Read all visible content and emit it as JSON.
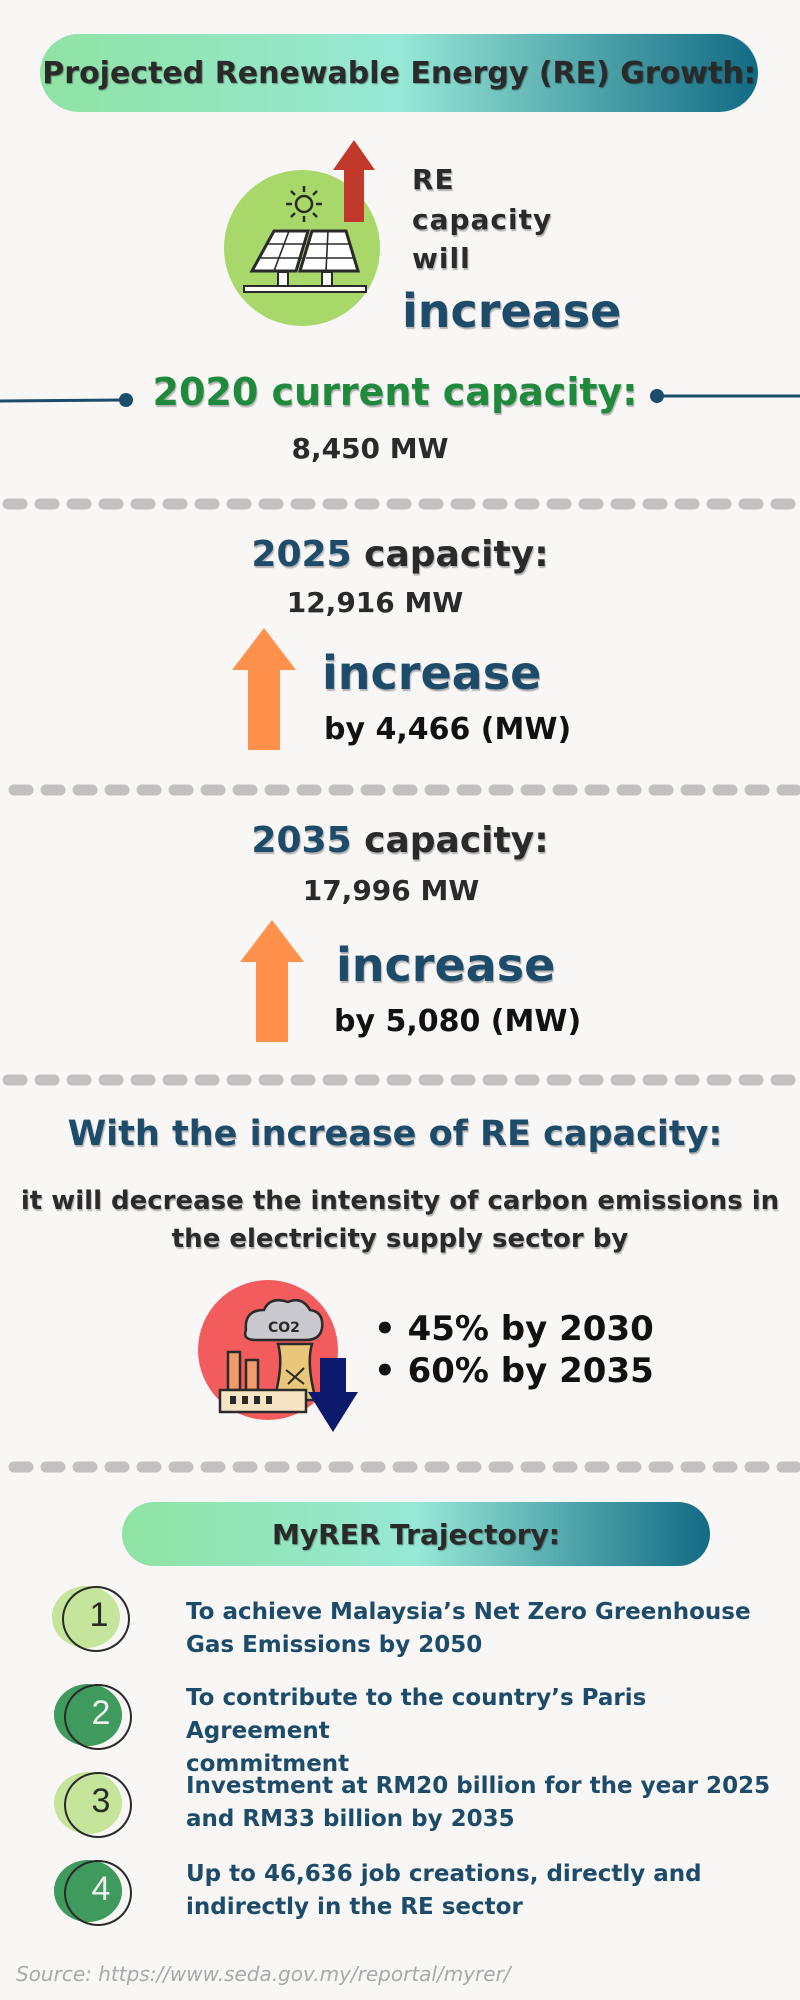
{
  "header": {
    "title": "Projected Renewable Energy (RE) Growth:"
  },
  "hero": {
    "line1": "RE",
    "line2": "capacity",
    "line3": "will",
    "line4": "increase"
  },
  "current": {
    "title": "2020 current capacity:",
    "value": "8,450 MW"
  },
  "cap2025": {
    "year": "2025",
    "label": "capacity:",
    "value": "12,916 MW",
    "increase_word": "increase",
    "increase_by": "by 4,466 (MW)"
  },
  "cap2035": {
    "year": "2035",
    "label": "capacity:",
    "value": "17,996 MW",
    "increase_word": "increase",
    "increase_by": "by 5,080 (MW)"
  },
  "emissions": {
    "heading": "With the increase of RE capacity:",
    "line1": "it will decrease the intensity of carbon emissions in",
    "line2": "the electricity supply sector by",
    "icon_text": "CO2",
    "bullets": [
      "• 45% by 2030",
      "• 60% by 2035"
    ]
  },
  "trajectory": {
    "title": "MyRER Trajectory:",
    "items": [
      {
        "num": "1",
        "line1": "To achieve Malaysia’s Net Zero Greenhouse",
        "line2": "Gas Emissions by 2050"
      },
      {
        "num": "2",
        "line1": "To contribute to the country’s Paris Agreement",
        "line2": "commitment"
      },
      {
        "num": "3",
        "line1": "Investment at RM20 billion for the year 2025",
        "line2": "and RM33 billion by 2035"
      },
      {
        "num": "4",
        "line1": "Up to 46,636 job creations, directly and",
        "line2": "indirectly in the RE sector"
      }
    ]
  },
  "source": "Source: https://www.seda.gov.my/reportal/myrer/",
  "colors": {
    "background": "#f9f6f6",
    "navy": "#1d4b6a",
    "green": "#1f8a3b",
    "orange_arrow": "#ff914d",
    "red_arrow": "#c0392b",
    "light_green": "#a8d86a",
    "dark_green": "#3e9a5d",
    "coral": "#f25c5c",
    "dashes": "#c2c0c0"
  }
}
